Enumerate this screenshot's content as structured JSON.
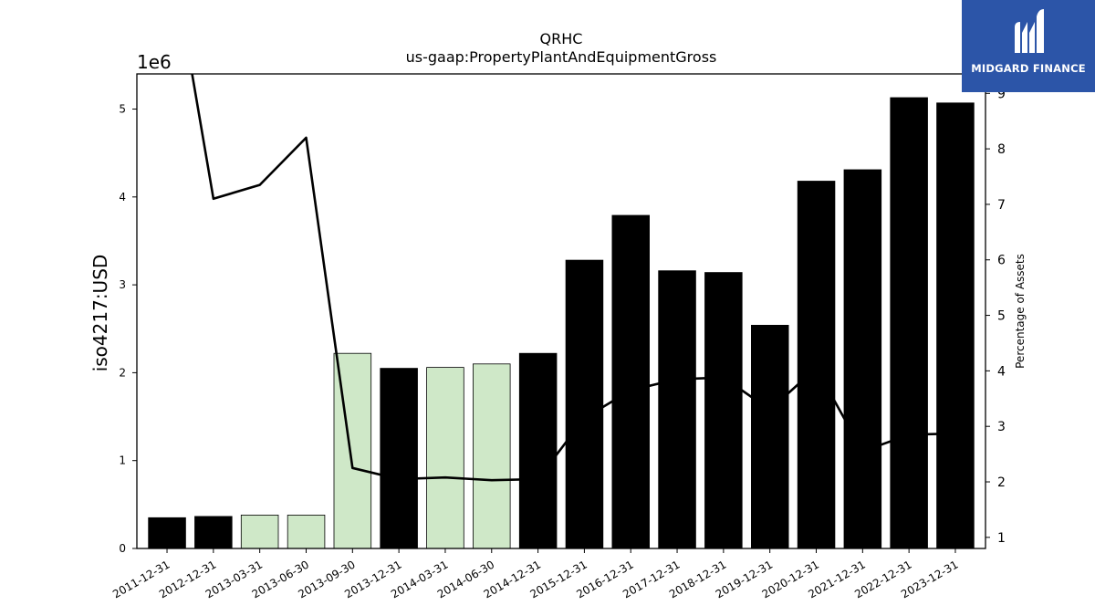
{
  "chart_data": {
    "type": "bar",
    "title": "QRHC",
    "subtitle": "us-gaap:PropertyPlantAndEquipmentGross",
    "ylabel": "iso4217:USD",
    "y2label": "Percentage of Assets",
    "offset_text": "1e6",
    "categories": [
      "2011-12-31",
      "2012-12-31",
      "2013-03-31",
      "2013-06-30",
      "2013-09-30",
      "2013-12-31",
      "2014-03-31",
      "2014-06-30",
      "2014-12-31",
      "2015-12-31",
      "2016-12-31",
      "2017-12-31",
      "2018-12-31",
      "2019-12-31",
      "2020-12-31",
      "2021-12-31",
      "2022-12-31",
      "2023-12-31"
    ],
    "series": [
      {
        "values": [
          350000,
          365000,
          380000,
          380000,
          2220000,
          2050000,
          2060000,
          2100000,
          2220000,
          3280000,
          3790000,
          3160000,
          3140000,
          2540000,
          4180000,
          4310000,
          5130000,
          5070000
        ],
        "colors": [
          "#000000",
          "#000000",
          "#cfe8c8",
          "#cfe8c8",
          "#cfe8c8",
          "#000000",
          "#cfe8c8",
          "#cfe8c8",
          "#000000",
          "#000000",
          "#000000",
          "#000000",
          "#000000",
          "#000000",
          "#000000",
          "#000000",
          "#000000",
          "#000000"
        ]
      },
      {
        "axis": "right",
        "type": "line",
        "color": "#000000",
        "values": [
          12.0,
          7.1,
          7.35,
          8.2,
          2.25,
          2.05,
          2.08,
          2.03,
          2.05,
          3.15,
          3.65,
          3.85,
          3.88,
          3.3,
          4.05,
          2.55,
          2.85,
          2.87
        ]
      }
    ],
    "ylim": [
      0,
      5400000
    ],
    "yticks": [
      0,
      1000000,
      2000000,
      3000000,
      4000000,
      5000000
    ],
    "ytick_labels": [
      "0",
      "1",
      "2",
      "3",
      "4",
      "5"
    ],
    "y2lim": [
      0.8,
      9.35
    ],
    "y2ticks": [
      1,
      2,
      3,
      4,
      5,
      6,
      7,
      8,
      9
    ],
    "y2tick_labels": [
      "1",
      "2",
      "3",
      "4",
      "5",
      "6",
      "7",
      "8",
      "9"
    ],
    "grid": false
  },
  "watermark": {
    "brand": "MIDGARD FINANCE",
    "bg_color": "#2c55a8"
  }
}
